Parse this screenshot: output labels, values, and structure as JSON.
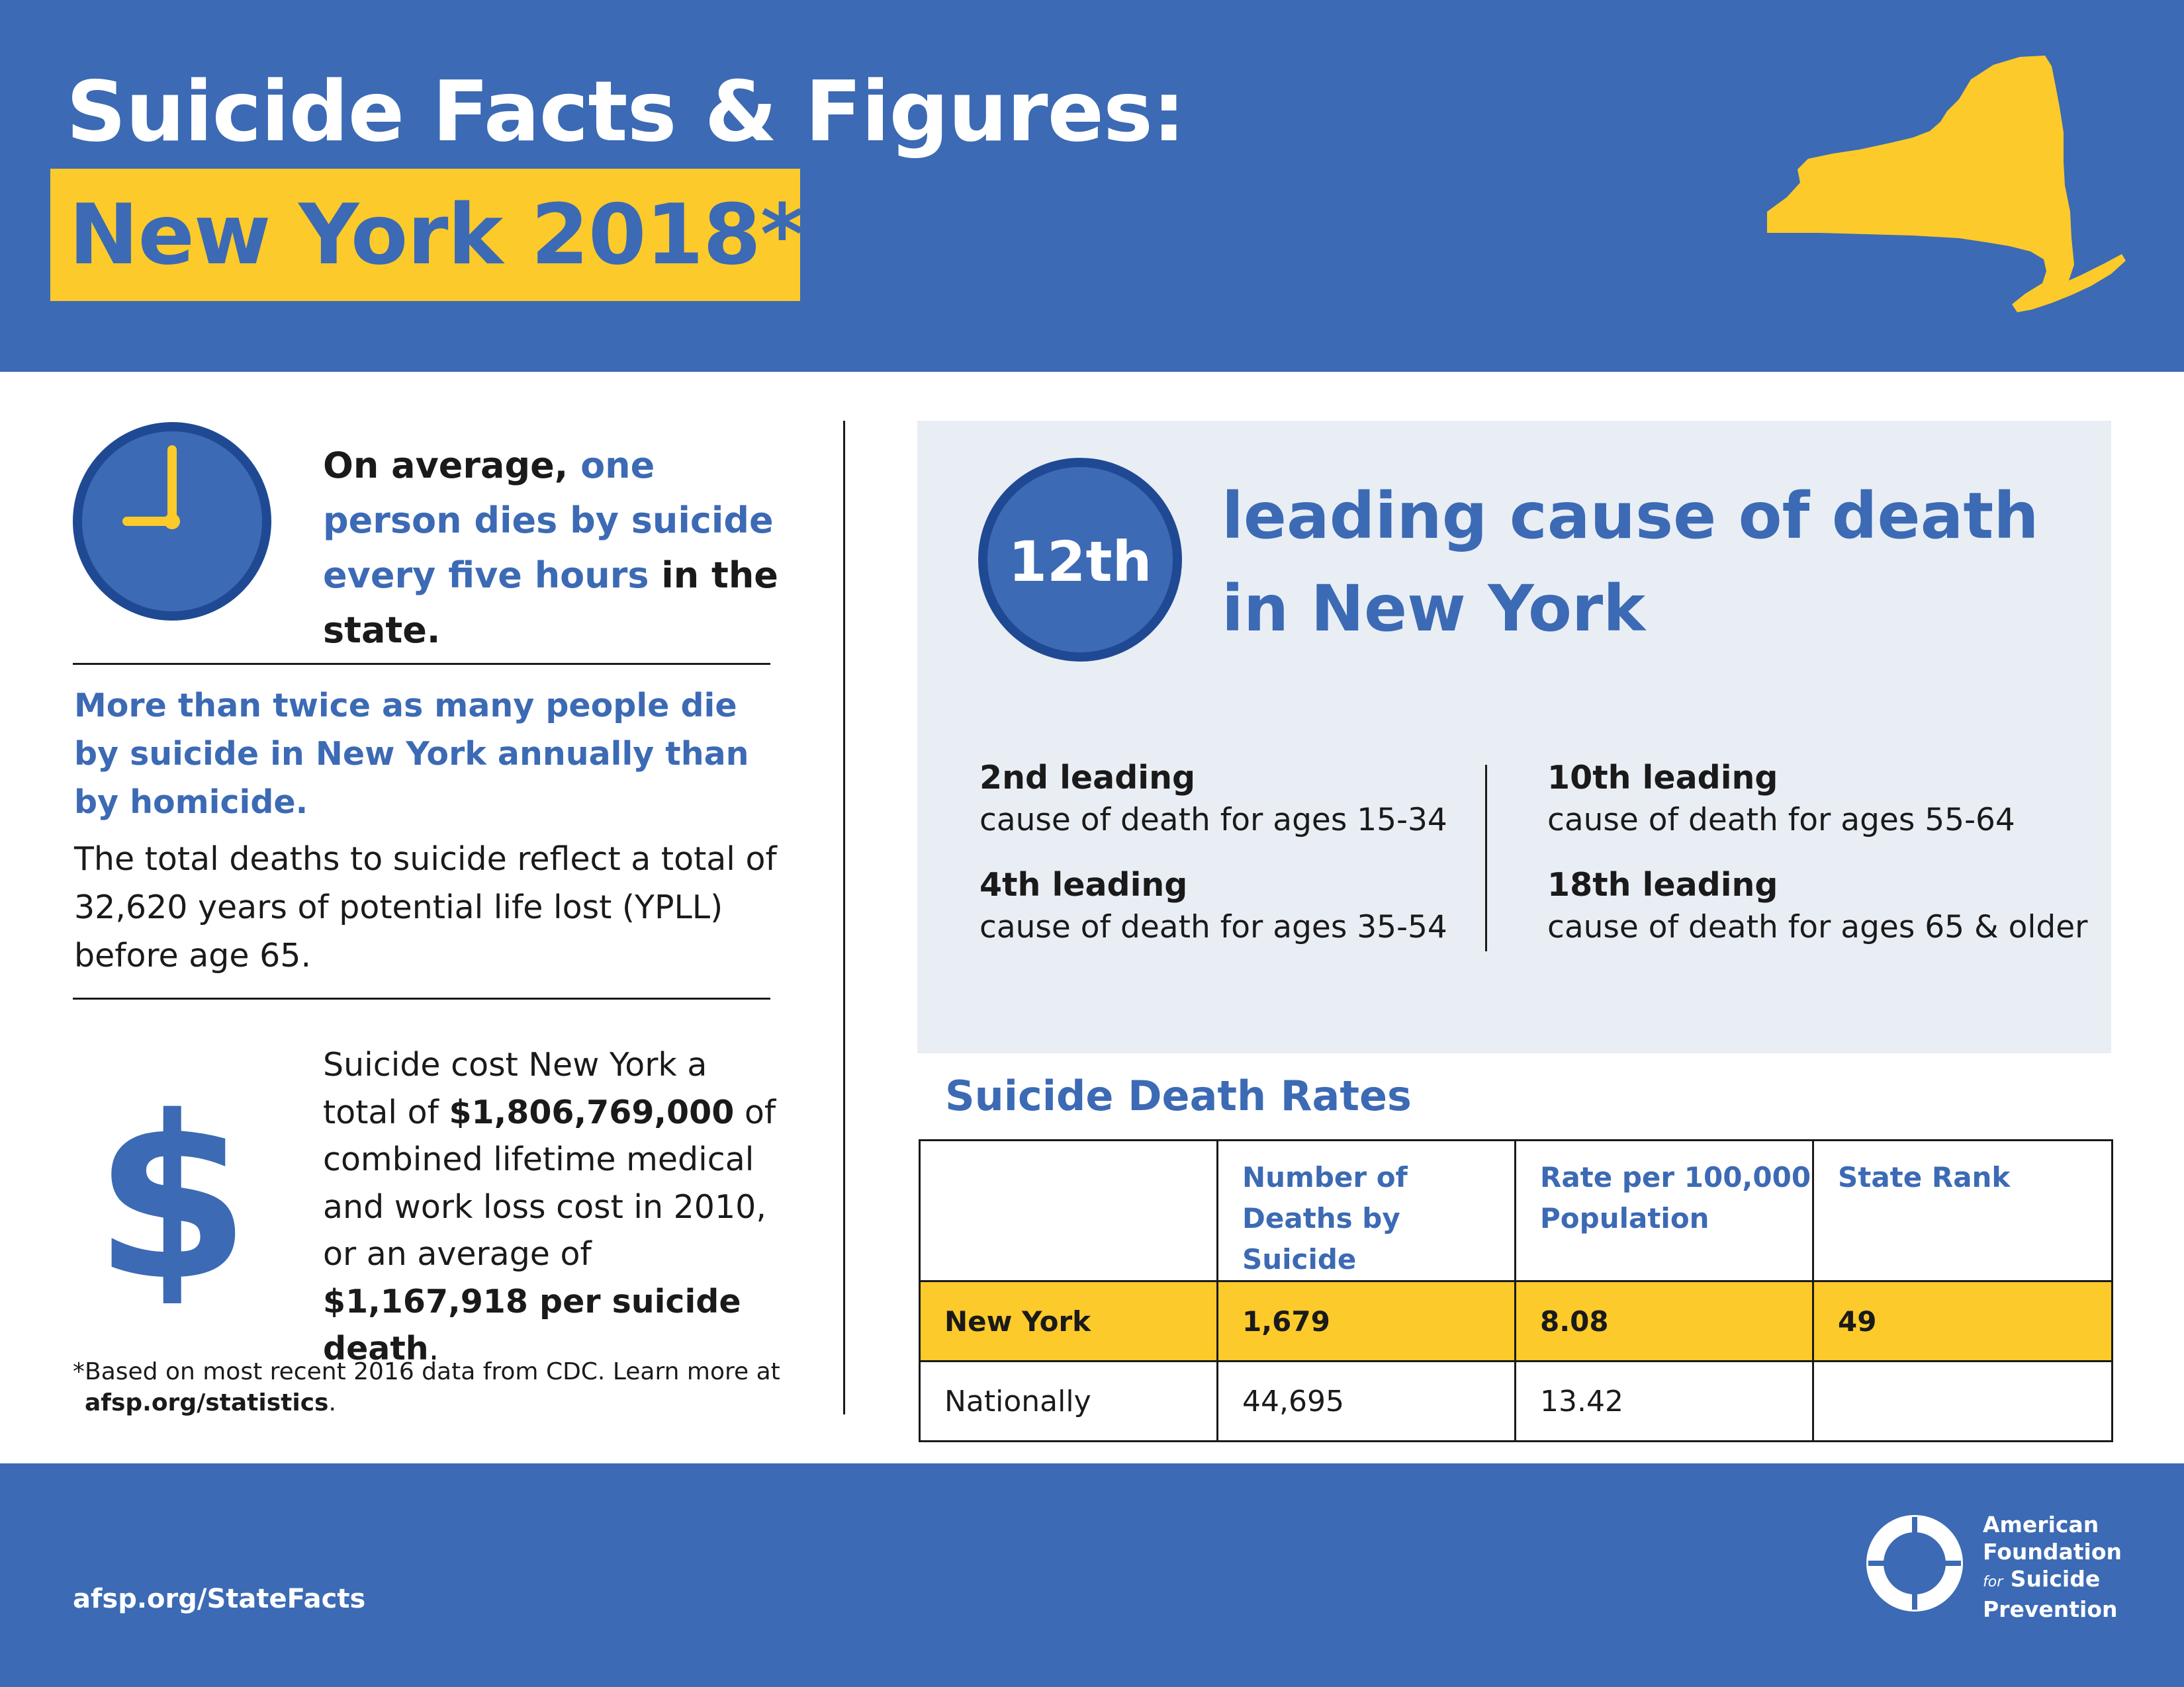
{
  "header": {
    "title": "Suicide Facts & Figures:",
    "subtitle": "New York 2018*",
    "map_icon": "new-york-state-map-icon"
  },
  "left": {
    "average": {
      "pre": "On average, ",
      "highlight": "one person dies by suicide every five hours",
      "post": " in the state."
    },
    "twice": "More than twice as many people die by suicide in New York annually than by homicide.",
    "ypll": "The total deaths to suicide reflect a total of 32,620 years of potential life lost (YPLL) before age 65.",
    "cost": {
      "p1": "Suicide cost New York a total of ",
      "amount": "$1,806,769,000",
      "p2": " of combined lifetime medical and work loss cost in 2010, or an average of ",
      "average": "$1,167,918 per suicide death",
      "p3": "."
    },
    "footnote": {
      "text": "*Based on most recent 2016 data from CDC. Learn more at",
      "link": "afsp.org/statistics",
      "end": "."
    }
  },
  "panel": {
    "rank": "12th",
    "heading_line1": "leading cause of death",
    "heading_line2": "in New York",
    "stats": [
      {
        "heading": "2nd leading",
        "text": "cause of death for ages 15-34"
      },
      {
        "heading": "4th leading",
        "text": "cause of death for ages 35-54"
      },
      {
        "heading": "10th leading",
        "text": "cause of death for ages 55-64"
      },
      {
        "heading": "18th leading",
        "text": "cause of death for ages 65 & older"
      }
    ]
  },
  "rates": {
    "title": "Suicide Death Rates",
    "columns": [
      "",
      "Number of Deaths by Suicide",
      "Rate per 100,000 Population",
      "State Rank"
    ],
    "rows": [
      [
        "New York",
        "1,679",
        "8.08",
        "49"
      ],
      [
        "Nationally",
        "44,695",
        "13.42",
        ""
      ]
    ]
  },
  "footer": {
    "link": "afsp.org/StateFacts",
    "org_line1": "American",
    "org_line2": "Foundation",
    "org_for": "for",
    "org_line3": "Suicide",
    "org_line4": "Prevention"
  },
  "colors": {
    "brand_blue": "#3c6ab4",
    "brand_yellow": "#fcca2a",
    "panel_bg": "#e9eef5"
  }
}
